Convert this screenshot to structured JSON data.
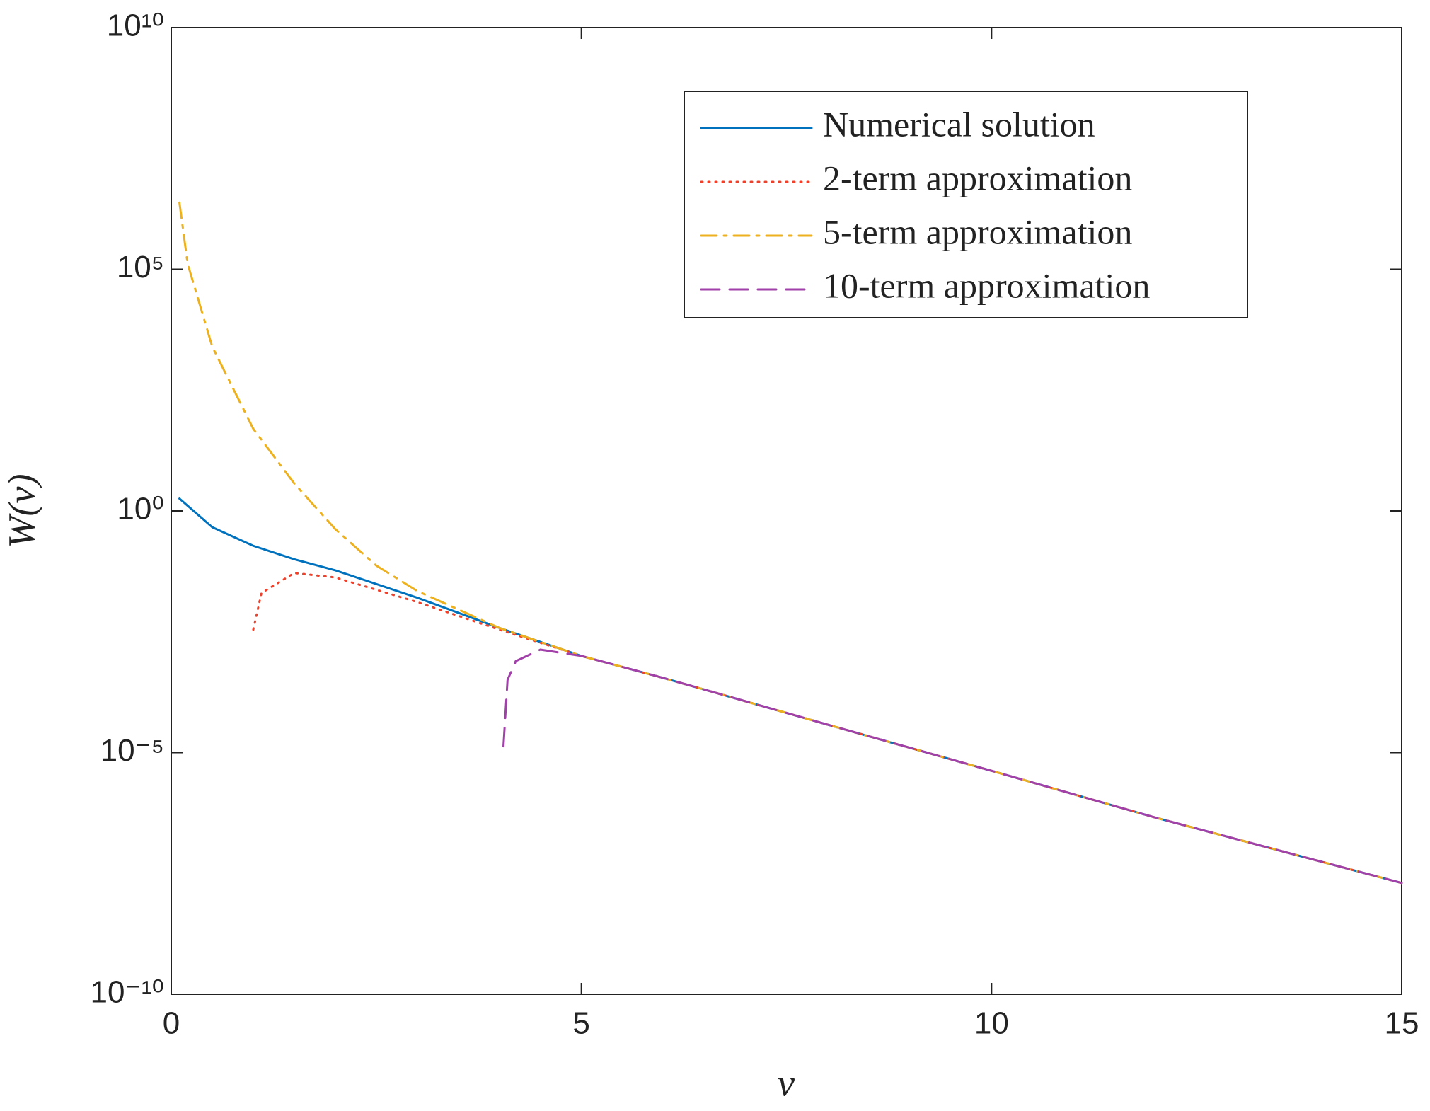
{
  "chart_data": {
    "type": "line",
    "x_label": "v",
    "y_label": "W(v)",
    "xlim": [
      0,
      15
    ],
    "xticks": [
      0,
      5,
      10,
      15
    ],
    "ylim": [
      1e-10,
      10000000000.0
    ],
    "log_y": true,
    "yticks": [
      {
        "value": 1e-10,
        "label": "10⁻¹⁰"
      },
      {
        "value": 1e-05,
        "label": "10⁻⁵"
      },
      {
        "value": 1,
        "label": "10⁰"
      },
      {
        "value": 100000,
        "label": "10⁵"
      },
      {
        "value": 10000000000,
        "label": "10¹⁰"
      }
    ],
    "legend": "upper right",
    "series": [
      {
        "name": "Numerical solution",
        "color": "#0072bd",
        "style": "solid",
        "x": [
          0.1,
          0.5,
          1,
          1.5,
          2,
          3,
          4,
          5,
          6,
          8,
          10,
          12,
          15
        ],
        "values": [
          1.8,
          0.46,
          0.19,
          0.1,
          0.059,
          0.016,
          0.0038,
          0.001,
          0.00035,
          3.8e-05,
          4.2e-06,
          4.5e-07,
          2e-08
        ]
      },
      {
        "name": "2-term approximation",
        "color": "#f0402a",
        "style": "dotted",
        "x": [
          1,
          1.1,
          1.5,
          2,
          3,
          4,
          5,
          6,
          8,
          10,
          12,
          15
        ],
        "values": [
          0.0035,
          0.02,
          0.052,
          0.042,
          0.013,
          0.0035,
          0.001,
          0.00035,
          3.8e-05,
          4.2e-06,
          4.5e-07,
          2e-08
        ]
      },
      {
        "name": "5-term approximation",
        "color": "#edb120",
        "style": "dashdot",
        "x": [
          0.1,
          0.2,
          0.5,
          1,
          1.5,
          2,
          2.5,
          3,
          4,
          5,
          6,
          8,
          10,
          12,
          15
        ],
        "values": [
          2400000,
          130000,
          2500,
          50,
          3.7,
          0.42,
          0.074,
          0.022,
          0.0038,
          0.001,
          0.00035,
          3.8e-05,
          4.2e-06,
          4.5e-07,
          2e-08
        ]
      },
      {
        "name": "10-term approximation",
        "color": "#a040a8",
        "style": "dashed",
        "x": [
          4.05,
          4.1,
          4.2,
          4.5,
          5,
          6,
          8,
          10,
          12,
          15
        ],
        "values": [
          1.35e-05,
          0.00032,
          0.00078,
          0.00135,
          0.001,
          0.00035,
          3.8e-05,
          4.2e-06,
          4.5e-07,
          2e-08
        ]
      }
    ]
  }
}
